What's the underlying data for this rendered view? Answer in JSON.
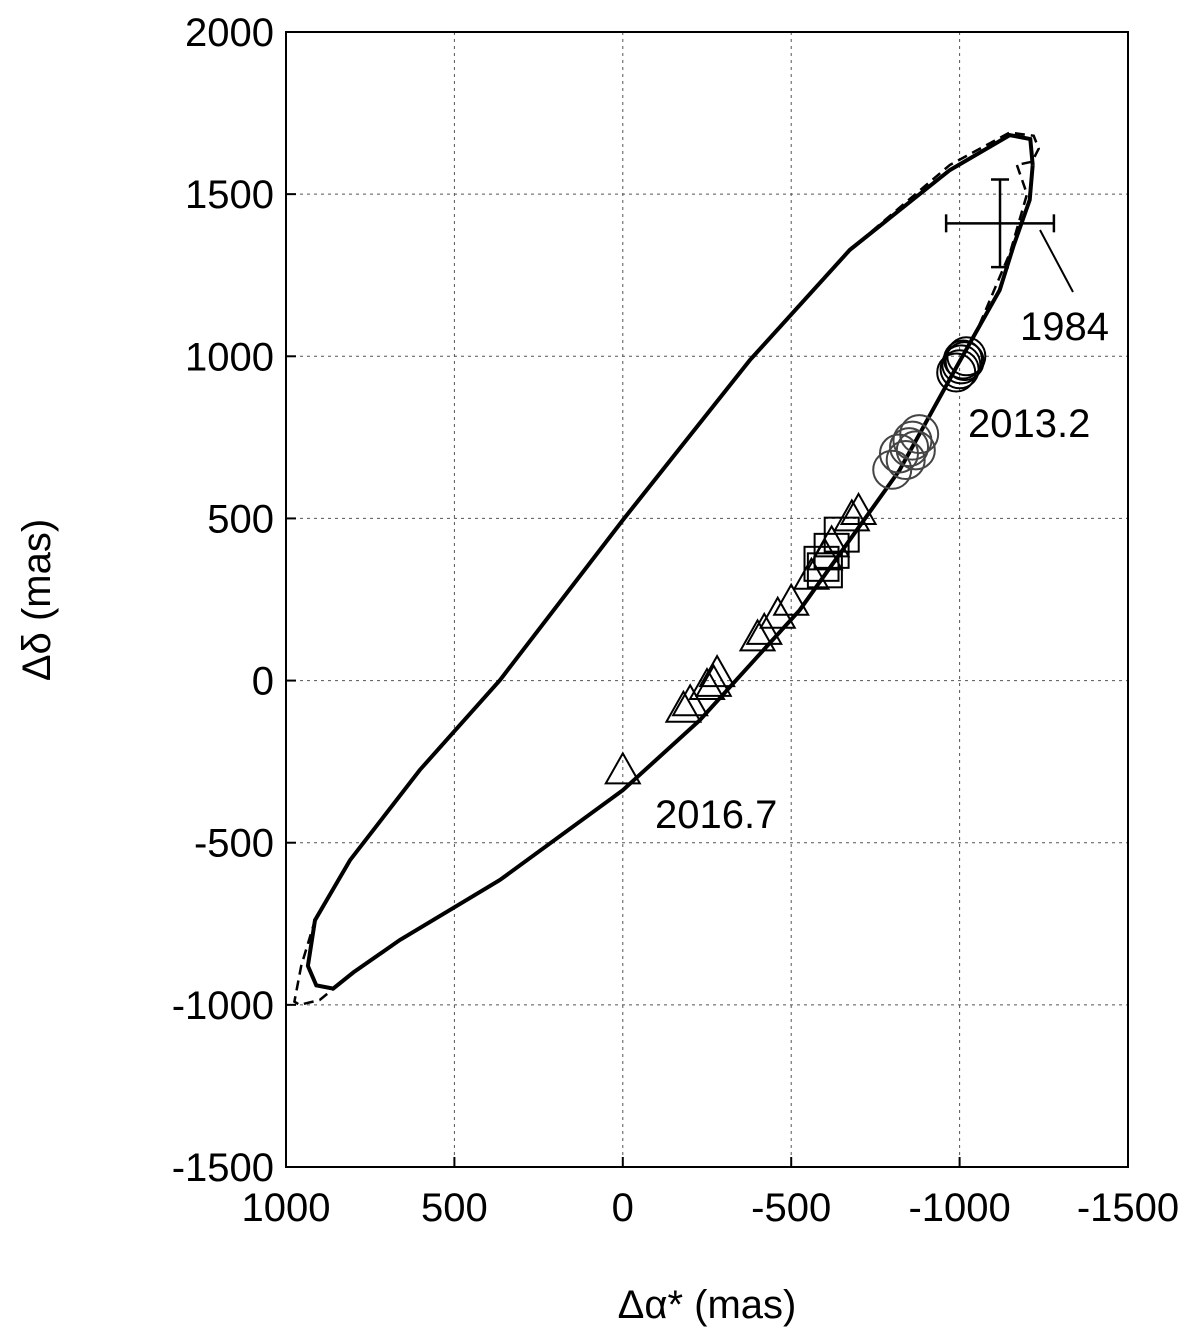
{
  "chart_data": {
    "type": "scatter",
    "xlabel": "Δα* (mas)",
    "ylabel": "Δδ (mas)",
    "xlim": [
      1000,
      -1500
    ],
    "ylim": [
      -1500,
      2000
    ],
    "xticks": [
      1000,
      500,
      0,
      -500,
      -1000,
      -1500
    ],
    "yticks": [
      -1500,
      -1000,
      -500,
      0,
      500,
      1000,
      1500,
      2000
    ],
    "grid": true,
    "series": [
      {
        "kind": "line",
        "style": "solid",
        "color": "#000000",
        "x": [
          -1217,
          -1208,
          -1160,
          -1119,
          -994,
          -822,
          -525,
          -229,
          0,
          365,
          662,
          800,
          860,
          910,
          935,
          914,
          810,
          603,
          365,
          0,
          -377,
          -674,
          -971,
          -1149,
          -1210,
          -1217
        ],
        "y": [
          1590,
          1482,
          1340,
          1204,
          973,
          649,
          217,
          -122,
          -338,
          -615,
          -800,
          -900,
          -950,
          -940,
          -880,
          -739,
          -554,
          -276,
          1,
          495,
          988,
          1328,
          1574,
          1682,
          1670,
          1590
        ]
      },
      {
        "kind": "line",
        "style": "dashed",
        "color": "#000000",
        "x": [
          -1170,
          -1200,
          -1150,
          -1060,
          -994,
          -822,
          -525,
          -229,
          0,
          365,
          662,
          800,
          900,
          960,
          975,
          955,
          914,
          810,
          603,
          365,
          0,
          -377,
          -674,
          -971,
          -1149,
          -1220,
          -1235,
          -1215,
          -1170
        ],
        "y": [
          1590,
          1500,
          1320,
          1100,
          973,
          649,
          217,
          -122,
          -338,
          -615,
          -800,
          -900,
          -985,
          -1000,
          -990,
          -880,
          -739,
          -554,
          -276,
          1,
          495,
          988,
          1328,
          1590,
          1690,
          1680,
          1640,
          1600,
          1590
        ]
      },
      {
        "kind": "marker",
        "marker": "circle",
        "color": "#000000",
        "x": [
          -1000,
          -1010,
          -1020,
          -990,
          -1005,
          -1015
        ],
        "y": [
          960,
          990,
          1000,
          950,
          975,
          985
        ]
      },
      {
        "kind": "marker",
        "marker": "circle",
        "color": "#444444",
        "x": [
          -820,
          -860,
          -840,
          -800,
          -880,
          -850,
          -870
        ],
        "y": [
          700,
          740,
          680,
          650,
          760,
          720,
          710
        ]
      },
      {
        "kind": "marker",
        "marker": "square",
        "color": "#000000",
        "x": [
          -650,
          -590,
          -600,
          -620
        ],
        "y": [
          450,
          360,
          340,
          400
        ]
      },
      {
        "kind": "marker",
        "marker": "triangle",
        "color": "#000000",
        "x": [
          -700,
          -680,
          -620,
          -600,
          -560,
          -500,
          -460,
          -420,
          -400,
          -280,
          -270,
          -250,
          -200,
          -180,
          0
        ],
        "y": [
          520,
          500,
          420,
          380,
          320,
          240,
          200,
          150,
          130,
          20,
          -10,
          -20,
          -70,
          -90,
          -280
        ]
      },
      {
        "kind": "errorbar",
        "color": "#000000",
        "x": [
          -1120
        ],
        "y": [
          1410
        ],
        "xerr": [
          160
        ],
        "yerr": [
          135
        ]
      }
    ],
    "annotations": [
      "1984",
      "2013.2",
      "2016.7"
    ]
  }
}
